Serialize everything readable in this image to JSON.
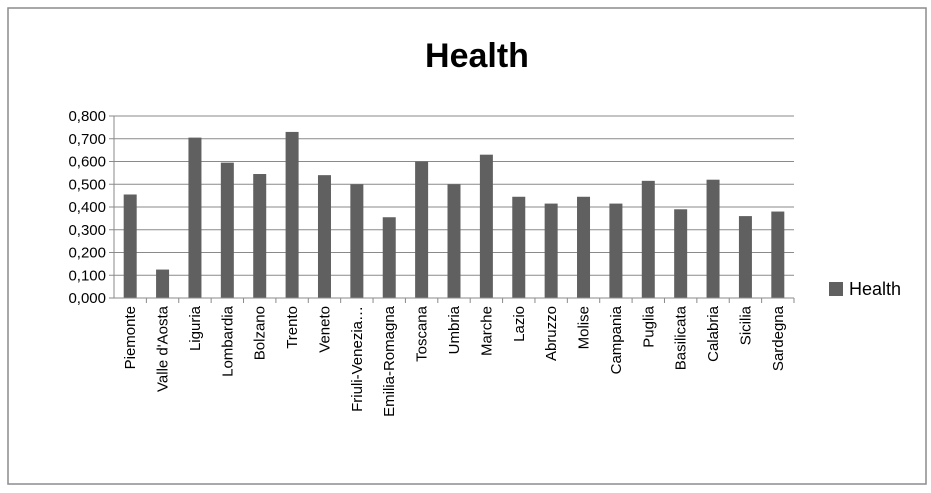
{
  "chart_data": {
    "type": "bar",
    "title": "Health",
    "xlabel": "",
    "ylabel": "",
    "categories": [
      "Piemonte",
      "Valle d'Aosta",
      "Liguria",
      "Lombardia",
      "Bolzano",
      "Trento",
      "Veneto",
      "Friuli-Venezia…",
      "Emilia-Romagna",
      "Toscana",
      "Umbria",
      "Marche",
      "Lazio",
      "Abruzzo",
      "Molise",
      "Campania",
      "Puglia",
      "Basilicata",
      "Calabria",
      "Sicilia",
      "Sardegna"
    ],
    "series": [
      {
        "name": "Health",
        "color": "#606060",
        "values": [
          0.455,
          0.125,
          0.705,
          0.595,
          0.545,
          0.73,
          0.54,
          0.5,
          0.355,
          0.6,
          0.5,
          0.63,
          0.445,
          0.415,
          0.445,
          0.415,
          0.515,
          0.39,
          0.52,
          0.36,
          0.38
        ]
      }
    ],
    "yticks": [
      "0,000",
      "0,100",
      "0,200",
      "0,300",
      "0,400",
      "0,500",
      "0,600",
      "0,700",
      "0,800"
    ],
    "ylim": [
      0,
      0.8
    ],
    "grid": true,
    "legend_position": "right"
  }
}
